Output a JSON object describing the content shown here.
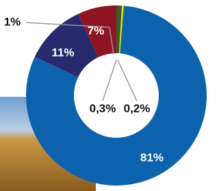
{
  "chart_data": {
    "type": "donut",
    "values": [
      1,
      0.3,
      0.2,
      81,
      11,
      7
    ],
    "value_labels": [
      "1%",
      "0,3%",
      "0,2%",
      "81%",
      "11%",
      "7%"
    ],
    "colors": [
      "#3b5a2a",
      "#f2e21a",
      "#1f7a3c",
      "#0d62ad",
      "#29296e",
      "#8e1424"
    ]
  }
}
